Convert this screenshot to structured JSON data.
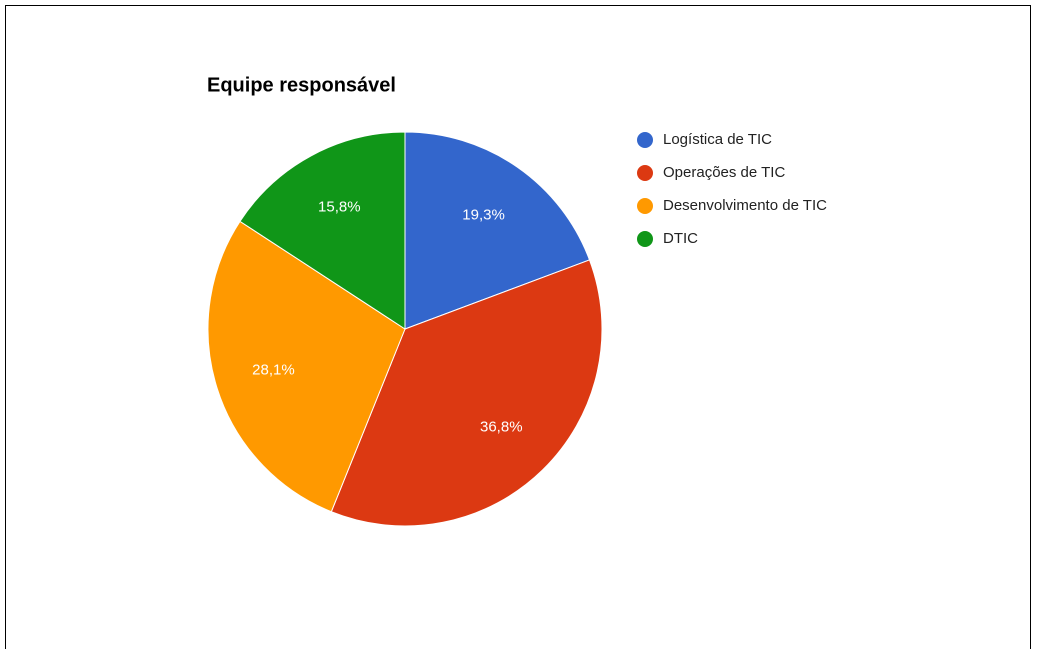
{
  "chart_data": {
    "type": "pie",
    "title": "Equipe responsável",
    "categories": [
      "Logística de TIC",
      "Operações de TIC",
      "Desenvolvimento de TIC",
      "DTIC"
    ],
    "values": [
      19.3,
      36.8,
      28.1,
      15.8
    ],
    "value_labels": [
      "19,3%",
      "36,8%",
      "28,1%",
      "15,8%"
    ],
    "colors": [
      "#3366cc",
      "#dc3912",
      "#ff9900",
      "#109618"
    ],
    "legend": "right"
  }
}
